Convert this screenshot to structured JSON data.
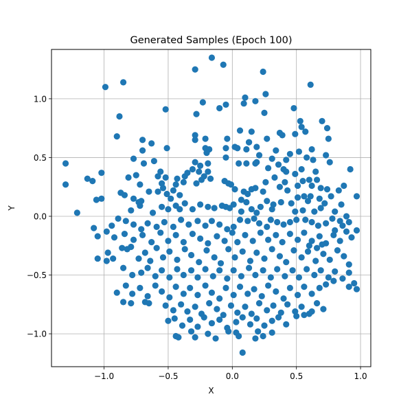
{
  "chart_data": {
    "type": "scatter",
    "title": "Generated Samples (Epoch 100)",
    "xlabel": "X",
    "ylabel": "Y",
    "xlim": [
      -1.41,
      1.08
    ],
    "ylim": [
      -1.28,
      1.42
    ],
    "xticks": [
      -1.0,
      -0.5,
      0.0,
      0.5,
      1.0
    ],
    "yticks": [
      -1.0,
      -0.5,
      0.0,
      0.5,
      1.0
    ],
    "xtick_labels": [
      "−1.0",
      "−0.5",
      "0.0",
      "0.5",
      "1.0"
    ],
    "ytick_labels": [
      "−1.0",
      "−0.5",
      "0.0",
      "0.5",
      "1.0"
    ],
    "grid": true,
    "marker_color": "#1f77b4",
    "points": [
      [
        -0.16,
        1.35
      ],
      [
        -0.07,
        1.29
      ],
      [
        -0.29,
        1.25
      ],
      [
        0.24,
        1.23
      ],
      [
        -0.85,
        1.14
      ],
      [
        -0.99,
        1.1
      ],
      [
        0.61,
        1.12
      ],
      [
        0.26,
        1.04
      ],
      [
        -0.23,
        0.97
      ],
      [
        0.1,
        1.01
      ],
      [
        0.18,
        0.98
      ],
      [
        0.09,
        0.96
      ],
      [
        0.48,
        0.92
      ],
      [
        -0.1,
        0.92
      ],
      [
        -0.05,
        0.95
      ],
      [
        -0.52,
        0.91
      ],
      [
        -0.28,
        0.87
      ],
      [
        -0.88,
        0.85
      ],
      [
        0.25,
        0.88
      ],
      [
        0.53,
        0.81
      ],
      [
        0.7,
        0.81
      ],
      [
        0.06,
        0.73
      ],
      [
        0.15,
        0.72
      ],
      [
        0.54,
        0.76
      ],
      [
        0.74,
        0.75
      ],
      [
        0.49,
        0.7
      ],
      [
        0.37,
        0.71
      ],
      [
        0.39,
        0.69
      ],
      [
        0.57,
        0.72
      ],
      [
        -0.04,
        0.66
      ],
      [
        0.27,
        0.66
      ],
      [
        -0.29,
        0.69
      ],
      [
        -0.29,
        0.65
      ],
      [
        -0.21,
        0.66
      ],
      [
        -0.7,
        0.65
      ],
      [
        -0.63,
        0.62
      ],
      [
        -0.51,
        0.58
      ],
      [
        0.13,
        0.63
      ],
      [
        0.04,
        0.58
      ],
      [
        -0.05,
        0.58
      ],
      [
        0.11,
        0.57
      ],
      [
        0.13,
        0.63
      ],
      [
        -0.9,
        0.68
      ],
      [
        0.19,
        0.59
      ],
      [
        -0.7,
        0.56
      ],
      [
        0.34,
        0.56
      ],
      [
        0.75,
        0.66
      ],
      [
        0.62,
        0.57
      ],
      [
        0.58,
        0.5
      ],
      [
        0.21,
        0.52
      ],
      [
        0.02,
        0.59
      ],
      [
        -0.21,
        0.58
      ],
      [
        -0.2,
        0.54
      ],
      [
        -0.18,
        0.57
      ],
      [
        -0.05,
        0.5
      ],
      [
        0.31,
        0.49
      ],
      [
        0.19,
        0.46
      ],
      [
        0.52,
        0.55
      ],
      [
        0.73,
        0.52
      ],
      [
        0.45,
        0.53
      ],
      [
        0.42,
        0.48
      ],
      [
        0.63,
        0.48
      ],
      [
        0.76,
        0.46
      ],
      [
        -0.61,
        0.47
      ],
      [
        -0.77,
        0.49
      ],
      [
        -0.69,
        0.45
      ],
      [
        -0.29,
        0.46
      ],
      [
        -0.25,
        0.43
      ],
      [
        -0.19,
        0.45
      ],
      [
        0.05,
        0.45
      ],
      [
        0.11,
        0.45
      ],
      [
        0.18,
        0.45
      ],
      [
        0.36,
        0.44
      ],
      [
        0.54,
        0.4
      ],
      [
        0.4,
        0.4
      ],
      [
        0.28,
        0.41
      ],
      [
        0.42,
        0.38
      ],
      [
        0.65,
        0.38
      ],
      [
        0.49,
        0.36
      ],
      [
        -1.3,
        0.45
      ],
      [
        -1.3,
        0.27
      ],
      [
        -1.02,
        0.37
      ],
      [
        -1.13,
        0.32
      ],
      [
        -1.09,
        0.3
      ],
      [
        -0.81,
        0.33
      ],
      [
        -0.75,
        0.35
      ],
      [
        -0.58,
        0.34
      ],
      [
        -0.56,
        0.38
      ],
      [
        -0.52,
        0.33
      ],
      [
        -0.37,
        0.34
      ],
      [
        -0.35,
        0.37
      ],
      [
        -0.26,
        0.38
      ],
      [
        -0.31,
        0.4
      ],
      [
        -0.22,
        0.34
      ],
      [
        -0.24,
        0.31
      ],
      [
        -0.19,
        0.38
      ],
      [
        -0.06,
        0.3
      ],
      [
        -0.03,
        0.28
      ],
      [
        -0.01,
        0.27
      ],
      [
        -0.17,
        0.32
      ],
      [
        -0.28,
        0.28
      ],
      [
        -0.43,
        0.32
      ],
      [
        -0.44,
        0.27
      ],
      [
        -0.38,
        0.29
      ],
      [
        -0.55,
        0.28
      ],
      [
        -0.51,
        0.19
      ],
      [
        -0.46,
        0.22
      ],
      [
        -0.41,
        0.18
      ],
      [
        -0.48,
        0.15
      ],
      [
        -0.58,
        0.21
      ],
      [
        -0.54,
        0.24
      ],
      [
        -0.72,
        0.27
      ],
      [
        -0.65,
        0.21
      ],
      [
        -0.77,
        0.15
      ],
      [
        -0.73,
        0.12
      ],
      [
        -0.71,
        0.13
      ],
      [
        -0.84,
        0.18
      ],
      [
        -0.87,
        0.2
      ],
      [
        -1.06,
        0.14
      ],
      [
        -1.02,
        0.15
      ],
      [
        -1.21,
        0.03
      ],
      [
        0.02,
        0.23
      ],
      [
        0.09,
        0.21
      ],
      [
        0.12,
        0.19
      ],
      [
        0.15,
        0.23
      ],
      [
        0.18,
        0.24
      ],
      [
        0.24,
        0.21
      ],
      [
        0.26,
        0.29
      ],
      [
        0.33,
        0.33
      ],
      [
        0.37,
        0.25
      ],
      [
        0.43,
        0.22
      ],
      [
        0.41,
        0.29
      ],
      [
        0.51,
        0.26
      ],
      [
        0.55,
        0.3
      ],
      [
        0.6,
        0.31
      ],
      [
        0.66,
        0.31
      ],
      [
        0.62,
        0.26
      ],
      [
        0.69,
        0.24
      ],
      [
        0.74,
        0.23
      ],
      [
        0.77,
        0.17
      ],
      [
        0.83,
        0.22
      ],
      [
        0.87,
        0.26
      ],
      [
        0.92,
        0.4
      ],
      [
        0.97,
        0.17
      ],
      [
        0.56,
        0.17
      ],
      [
        0.51,
        0.16
      ],
      [
        0.59,
        0.13
      ],
      [
        0.61,
        0.17
      ],
      [
        0.68,
        0.15
      ],
      [
        0.72,
        0.11
      ],
      [
        0.69,
        0.07
      ],
      [
        0.64,
        0.04
      ],
      [
        0.55,
        0.05
      ],
      [
        0.49,
        0.04
      ],
      [
        0.46,
        0.11
      ],
      [
        0.38,
        0.12
      ],
      [
        0.32,
        0.1
      ],
      [
        0.31,
        0.06
      ],
      [
        0.27,
        0.13
      ],
      [
        0.22,
        0.08
      ],
      [
        0.19,
        0.03
      ],
      [
        0.15,
        0.06
      ],
      [
        0.11,
        0.12
      ],
      [
        0.07,
        0.14
      ],
      [
        0.07,
        0.04
      ],
      [
        0.01,
        0.1
      ],
      [
        -0.02,
        0.07
      ],
      [
        -0.05,
        0.08
      ],
      [
        -0.08,
        0.09
      ],
      [
        -0.14,
        0.07
      ],
      [
        -0.19,
        0.08
      ],
      [
        -0.25,
        0.1
      ],
      [
        -0.31,
        0.06
      ],
      [
        -0.37,
        0.11
      ],
      [
        -0.41,
        0.06
      ],
      [
        -0.44,
        0.09
      ],
      [
        -0.5,
        0.06
      ],
      [
        -0.55,
        0.08
      ],
      [
        -0.62,
        0.03
      ],
      [
        -0.72,
        0.09
      ],
      [
        -0.79,
        0.05
      ],
      [
        0.8,
        0.04
      ],
      [
        0.85,
        0.1
      ],
      [
        0.78,
        -0.02
      ],
      [
        0.84,
        -0.04
      ],
      [
        0.89,
        0.0
      ],
      [
        0.91,
        -0.05
      ],
      [
        0.86,
        -0.08
      ],
      [
        0.8,
        -0.12
      ],
      [
        0.73,
        -0.06
      ],
      [
        0.67,
        -0.08
      ],
      [
        0.62,
        -0.05
      ],
      [
        0.57,
        -0.03
      ],
      [
        0.5,
        -0.03
      ],
      [
        0.45,
        -0.05
      ],
      [
        0.4,
        -0.07
      ],
      [
        0.35,
        -0.05
      ],
      [
        0.3,
        -0.03
      ],
      [
        0.27,
        -0.09
      ],
      [
        0.21,
        -0.06
      ],
      [
        0.17,
        -0.02
      ],
      [
        0.12,
        -0.04
      ],
      [
        0.06,
        -0.03
      ],
      [
        0.01,
        -0.09
      ],
      [
        -0.04,
        -0.11
      ],
      [
        -0.1,
        -0.07
      ],
      [
        -0.16,
        -0.04
      ],
      [
        -0.21,
        -0.08
      ],
      [
        -0.27,
        -0.04
      ],
      [
        -0.34,
        -0.07
      ],
      [
        -0.4,
        -0.03
      ],
      [
        -0.46,
        -0.09
      ],
      [
        -0.53,
        -0.05
      ],
      [
        -0.59,
        -0.09
      ],
      [
        -0.66,
        -0.06
      ],
      [
        -0.71,
        -0.11
      ],
      [
        -0.77,
        -0.07
      ],
      [
        -0.83,
        -0.04
      ],
      [
        -0.89,
        -0.02
      ],
      [
        -0.94,
        -0.08
      ],
      [
        -0.98,
        -0.13
      ],
      [
        -1.08,
        -0.1
      ],
      [
        -1.05,
        -0.17
      ],
      [
        -0.92,
        -0.18
      ],
      [
        -0.84,
        -0.15
      ],
      [
        -0.77,
        -0.2
      ],
      [
        -0.7,
        -0.16
      ],
      [
        -0.63,
        -0.22
      ],
      [
        -0.56,
        -0.14
      ],
      [
        -0.5,
        -0.21
      ],
      [
        -0.44,
        -0.16
      ],
      [
        -0.38,
        -0.22
      ],
      [
        -0.31,
        -0.15
      ],
      [
        -0.25,
        -0.19
      ],
      [
        -0.19,
        -0.23
      ],
      [
        -0.12,
        -0.17
      ],
      [
        -0.06,
        -0.21
      ],
      [
        0.0,
        -0.14
      ],
      [
        0.04,
        -0.22
      ],
      [
        0.1,
        -0.16
      ],
      [
        0.16,
        -0.21
      ],
      [
        0.22,
        -0.14
      ],
      [
        0.28,
        -0.2
      ],
      [
        0.34,
        -0.16
      ],
      [
        0.39,
        -0.22
      ],
      [
        0.45,
        -0.15
      ],
      [
        0.51,
        -0.2
      ],
      [
        0.56,
        -0.14
      ],
      [
        0.62,
        -0.21
      ],
      [
        0.68,
        -0.17
      ],
      [
        0.73,
        -0.23
      ],
      [
        0.79,
        -0.16
      ],
      [
        0.84,
        -0.21
      ],
      [
        0.89,
        -0.13
      ],
      [
        0.93,
        -0.18
      ],
      [
        0.97,
        -0.12
      ],
      [
        -0.97,
        -0.31
      ],
      [
        -0.98,
        -0.38
      ],
      [
        -0.93,
        -0.36
      ],
      [
        -0.86,
        -0.27
      ],
      [
        -0.82,
        -0.28
      ],
      [
        -0.79,
        -0.26
      ],
      [
        -0.73,
        -0.36
      ],
      [
        -0.68,
        -0.31
      ],
      [
        -0.64,
        -0.38
      ],
      [
        -0.59,
        -0.27
      ],
      [
        -0.54,
        -0.35
      ],
      [
        -0.49,
        -0.3
      ],
      [
        -0.43,
        -0.37
      ],
      [
        -0.37,
        -0.28
      ],
      [
        -0.32,
        -0.33
      ],
      [
        -0.26,
        -0.39
      ],
      [
        -0.2,
        -0.29
      ],
      [
        -0.14,
        -0.35
      ],
      [
        -0.09,
        -0.4
      ],
      [
        -0.03,
        -0.28
      ],
      [
        0.02,
        -0.35
      ],
      [
        0.08,
        -0.3
      ],
      [
        0.14,
        -0.38
      ],
      [
        0.19,
        -0.31
      ],
      [
        0.25,
        -0.36
      ],
      [
        0.31,
        -0.28
      ],
      [
        0.37,
        -0.34
      ],
      [
        0.42,
        -0.39
      ],
      [
        0.48,
        -0.29
      ],
      [
        0.54,
        -0.35
      ],
      [
        0.59,
        -0.3
      ],
      [
        0.65,
        -0.38
      ],
      [
        0.71,
        -0.32
      ],
      [
        0.76,
        -0.37
      ],
      [
        0.82,
        -0.29
      ],
      [
        0.87,
        -0.34
      ],
      [
        0.91,
        -0.41
      ],
      [
        0.6,
        -0.25
      ],
      [
        0.66,
        -0.27
      ],
      [
        0.7,
        -0.24
      ],
      [
        -1.05,
        -0.36
      ],
      [
        -0.85,
        -0.44
      ],
      [
        -0.78,
        -0.5
      ],
      [
        -0.71,
        -0.48
      ],
      [
        -0.66,
        -0.44
      ],
      [
        -0.6,
        -0.51
      ],
      [
        -0.55,
        -0.46
      ],
      [
        -0.49,
        -0.52
      ],
      [
        -0.43,
        -0.45
      ],
      [
        -0.38,
        -0.5
      ],
      [
        -0.32,
        -0.46
      ],
      [
        -0.27,
        -0.52
      ],
      [
        -0.21,
        -0.45
      ],
      [
        -0.15,
        -0.51
      ],
      [
        -0.1,
        -0.46
      ],
      [
        -0.04,
        -0.53
      ],
      [
        0.01,
        -0.46
      ],
      [
        0.07,
        -0.51
      ],
      [
        0.13,
        -0.44
      ],
      [
        0.18,
        -0.5
      ],
      [
        0.24,
        -0.46
      ],
      [
        0.3,
        -0.52
      ],
      [
        0.35,
        -0.45
      ],
      [
        0.41,
        -0.51
      ],
      [
        0.47,
        -0.46
      ],
      [
        0.52,
        -0.52
      ],
      [
        0.58,
        -0.45
      ],
      [
        0.64,
        -0.5
      ],
      [
        0.69,
        -0.46
      ],
      [
        0.75,
        -0.52
      ],
      [
        0.8,
        -0.47
      ],
      [
        0.86,
        -0.53
      ],
      [
        0.91,
        -0.48
      ],
      [
        0.95,
        -0.57
      ],
      [
        -0.9,
        -0.65
      ],
      [
        -0.83,
        -0.59
      ],
      [
        -0.78,
        -0.66
      ],
      [
        -0.72,
        -0.61
      ],
      [
        -0.66,
        -0.68
      ],
      [
        -0.6,
        -0.59
      ],
      [
        -0.55,
        -0.64
      ],
      [
        -0.49,
        -0.69
      ],
      [
        -0.44,
        -0.6
      ],
      [
        -0.38,
        -0.66
      ],
      [
        -0.33,
        -0.61
      ],
      [
        -0.27,
        -0.67
      ],
      [
        -0.21,
        -0.59
      ],
      [
        -0.16,
        -0.65
      ],
      [
        -0.1,
        -0.7
      ],
      [
        -0.05,
        -0.61
      ],
      [
        0.01,
        -0.67
      ],
      [
        0.06,
        -0.6
      ],
      [
        0.12,
        -0.66
      ],
      [
        0.17,
        -0.62
      ],
      [
        0.23,
        -0.68
      ],
      [
        0.28,
        -0.59
      ],
      [
        0.34,
        -0.64
      ],
      [
        0.4,
        -0.7
      ],
      [
        0.45,
        -0.61
      ],
      [
        0.51,
        -0.67
      ],
      [
        0.56,
        -0.6
      ],
      [
        0.62,
        -0.66
      ],
      [
        0.68,
        -0.61
      ],
      [
        0.73,
        -0.58
      ],
      [
        0.79,
        -0.55
      ],
      [
        0.91,
        -0.6
      ],
      [
        0.97,
        -0.62
      ],
      [
        -0.85,
        -0.73
      ],
      [
        -0.79,
        -0.74
      ],
      [
        -0.68,
        -0.73
      ],
      [
        -0.65,
        -0.74
      ],
      [
        -0.52,
        -0.76
      ],
      [
        -0.46,
        -0.8
      ],
      [
        -0.4,
        -0.75
      ],
      [
        -0.35,
        -0.81
      ],
      [
        -0.29,
        -0.77
      ],
      [
        -0.24,
        -0.83
      ],
      [
        -0.18,
        -0.74
      ],
      [
        -0.12,
        -0.79
      ],
      [
        -0.07,
        -0.84
      ],
      [
        -0.01,
        -0.76
      ],
      [
        0.04,
        -0.82
      ],
      [
        0.1,
        -0.77
      ],
      [
        0.15,
        -0.83
      ],
      [
        0.21,
        -0.74
      ],
      [
        0.27,
        -0.8
      ],
      [
        0.32,
        -0.76
      ],
      [
        0.38,
        -0.82
      ],
      [
        0.43,
        -0.75
      ],
      [
        0.49,
        -0.81
      ],
      [
        0.54,
        -0.77
      ],
      [
        0.6,
        -0.83
      ],
      [
        0.66,
        -0.74
      ],
      [
        0.71,
        -0.79
      ],
      [
        -0.5,
        -0.89
      ],
      [
        -0.45,
        -0.87
      ],
      [
        -0.39,
        -0.93
      ],
      [
        -0.33,
        -0.88
      ],
      [
        -0.27,
        -0.94
      ],
      [
        -0.22,
        -0.86
      ],
      [
        -0.16,
        -0.91
      ],
      [
        -0.1,
        -0.88
      ],
      [
        -0.04,
        -0.95
      ],
      [
        0.03,
        -0.9
      ],
      [
        0.08,
        -0.86
      ],
      [
        0.14,
        -0.92
      ],
      [
        0.19,
        -0.87
      ],
      [
        0.25,
        -0.93
      ],
      [
        0.31,
        -0.89
      ],
      [
        0.36,
        -0.86
      ],
      [
        0.42,
        -0.92
      ],
      [
        0.5,
        -0.85
      ],
      [
        0.56,
        -0.84
      ],
      [
        0.62,
        -0.81
      ],
      [
        -0.44,
        -1.02
      ],
      [
        -0.42,
        -1.03
      ],
      [
        -0.32,
        -0.98
      ],
      [
        -0.29,
        -1.03
      ],
      [
        -0.19,
        -1.0
      ],
      [
        -0.13,
        -1.04
      ],
      [
        -0.03,
        -0.98
      ],
      [
        0.03,
        -0.99
      ],
      [
        0.05,
        -1.02
      ],
      [
        0.2,
        -0.98
      ],
      [
        0.18,
        -1.04
      ],
      [
        0.24,
        -1.02
      ],
      [
        0.31,
        -0.99
      ],
      [
        0.08,
        -1.16
      ]
    ]
  }
}
